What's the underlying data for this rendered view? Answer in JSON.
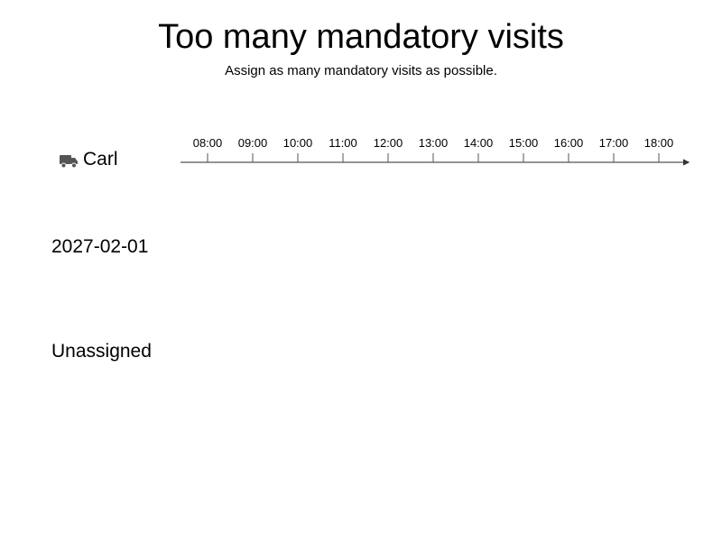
{
  "header": {
    "title": "Too many mandatory visits",
    "subtitle": "Assign as many mandatory visits as possible."
  },
  "vehicle": {
    "name": "Carl",
    "icon": "truck-icon",
    "icon_color": "#555555"
  },
  "timeline": {
    "ticks": [
      "08:00",
      "09:00",
      "10:00",
      "11:00",
      "12:00",
      "13:00",
      "14:00",
      "15:00",
      "16:00",
      "17:00",
      "18:00"
    ]
  },
  "date_group": {
    "label": "2027-02-01"
  },
  "unassigned": {
    "label": "Unassigned"
  }
}
